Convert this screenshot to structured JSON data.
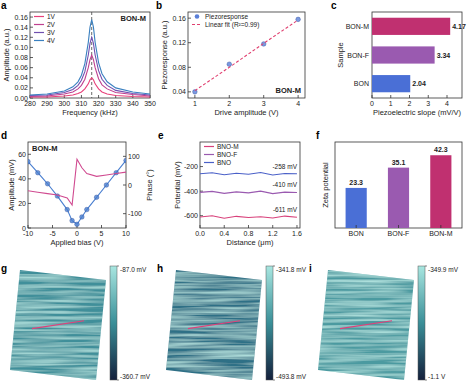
{
  "chart_data": [
    {
      "panel": "a",
      "type": "line",
      "sample_label": "BON-M",
      "x_label": "Frequency (kHz)",
      "y_label": "Amplitude (a.u.)",
      "x": [
        280,
        290,
        300,
        305,
        308,
        310,
        312,
        314,
        315,
        316,
        317,
        318,
        320,
        322,
        325,
        330,
        340,
        350
      ],
      "series": [
        {
          "name": "1V",
          "color": "#e8407a",
          "line_style": "solid",
          "values": [
            0.002,
            0.002,
            0.004,
            0.006,
            0.009,
            0.012,
            0.018,
            0.028,
            0.036,
            0.04,
            0.036,
            0.028,
            0.018,
            0.012,
            0.008,
            0.005,
            0.003,
            0.002
          ]
        },
        {
          "name": "2V",
          "color": "#c04090",
          "line_style": "solid",
          "values": [
            0.003,
            0.004,
            0.008,
            0.012,
            0.018,
            0.025,
            0.037,
            0.06,
            0.076,
            0.085,
            0.076,
            0.06,
            0.038,
            0.026,
            0.018,
            0.011,
            0.007,
            0.004
          ]
        },
        {
          "name": "3V",
          "color": "#7050b0",
          "line_style": "solid",
          "values": [
            0.005,
            0.006,
            0.011,
            0.017,
            0.025,
            0.035,
            0.052,
            0.085,
            0.108,
            0.12,
            0.108,
            0.085,
            0.054,
            0.037,
            0.025,
            0.015,
            0.009,
            0.006
          ]
        },
        {
          "name": "4V",
          "color": "#3a80c0",
          "line_style": "solid",
          "values": [
            0.006,
            0.008,
            0.014,
            0.022,
            0.032,
            0.045,
            0.068,
            0.11,
            0.14,
            0.155,
            0.14,
            0.11,
            0.07,
            0.048,
            0.032,
            0.02,
            0.012,
            0.008
          ]
        }
      ],
      "reference_x": 316,
      "xlim": [
        280,
        350
      ],
      "xticks": [
        280,
        290,
        300,
        310,
        320,
        330,
        340,
        350
      ],
      "ylim": [
        0,
        0.17
      ],
      "yticks": [
        {
          "value": 0,
          "label": "0.00"
        },
        0.02,
        0.04,
        0.06,
        0.08,
        {
          "value": 0.1,
          "label": "0.10"
        },
        0.12,
        0.14,
        0.16
      ],
      "legend": "upper left"
    },
    {
      "panel": "b",
      "type": "scatter",
      "sample_label": "BON-M",
      "x_label": "Drive amplitude (V)",
      "y_label": "Piezoresponse (a.u.)",
      "x": [
        1,
        2,
        3,
        4
      ],
      "series": [
        {
          "name": "Piezoresponse",
          "color": "#5a7fd8",
          "marker": "circle",
          "line_style": "none",
          "values": [
            0.04,
            0.085,
            0.118,
            0.158
          ]
        },
        {
          "name": "Linear fit (R²=0.99)",
          "color": "#e04070",
          "line_style": "dashed",
          "values": [
            0.042,
            0.08,
            0.119,
            0.157
          ]
        }
      ],
      "xlim": [
        0.8,
        4.2
      ],
      "xticks": [
        1,
        2,
        3,
        4
      ],
      "ylim": [
        0.03,
        0.17
      ],
      "yticks": [
        0.04,
        0.08,
        0.12,
        0.16
      ],
      "legend": "upper left"
    },
    {
      "panel": "c",
      "type": "bar",
      "orientation": "horizontal",
      "x_label": "Piezoelectric slope (mV/V)",
      "y_label": "Sample",
      "categories": [
        "BON-M",
        "BON-F",
        "BON"
      ],
      "values": [
        4.17,
        3.34,
        2.04
      ],
      "colors": [
        "#c03070",
        "#9a5ab0",
        "#4a6fd6"
      ],
      "xlim": [
        0,
        4.8
      ],
      "xticks": [
        0,
        1,
        2,
        3,
        4
      ],
      "data_labels": true
    },
    {
      "panel": "d",
      "type": "line",
      "sample_label": "BON-M",
      "x_label": "Applied bias (V)",
      "y_label": "Amplitude (mV)",
      "y2_label": "Phase (°)",
      "x": [
        -10,
        -8,
        -6,
        -4,
        -2,
        -1,
        0,
        1,
        2,
        4,
        6,
        8,
        10
      ],
      "series": [
        {
          "color": "#4a7fd0",
          "marker": "circle",
          "line_style": "solid",
          "values": [
            54,
            45,
            36,
            26,
            15,
            6,
            3,
            9,
            15,
            25,
            35,
            45,
            55
          ]
        },
        {
          "color": "#d04a90",
          "line_style": "solid",
          "axis": "y2",
          "values": [
            -20,
            -25,
            -30,
            -35,
            -45,
            -70,
            90,
            60,
            40,
            30,
            35,
            40,
            45
          ]
        }
      ],
      "xlim": [
        -10,
        10
      ],
      "xticks": [
        -10,
        -5,
        0,
        5,
        10
      ],
      "ylim": [
        0,
        70
      ],
      "yticks": [
        0,
        20,
        40,
        60
      ],
      "y2lim": [
        -150,
        150
      ],
      "y2ticks": [
        -100,
        0,
        100
      ]
    },
    {
      "panel": "e",
      "type": "line",
      "x_label": "Distance (μm)",
      "y_label": "Potential (mV)",
      "x": [
        0,
        0.2,
        0.4,
        0.6,
        0.8,
        1.0,
        1.2,
        1.4,
        1.6
      ],
      "series": [
        {
          "name": "BNO-M",
          "color": "#d8407a",
          "line_style": "solid",
          "values": [
            -611,
            -600,
            -620,
            -605,
            -615,
            -608,
            -618,
            -603,
            -612
          ]
        },
        {
          "name": "BNO-F",
          "color": "#9a5ab0",
          "line_style": "solid",
          "values": [
            -410,
            -402,
            -418,
            -406,
            -414,
            -400,
            -420,
            -408,
            -411
          ]
        },
        {
          "name": "BNO",
          "color": "#4a60c8",
          "line_style": "solid",
          "values": [
            -258,
            -250,
            -266,
            -254,
            -262,
            -248,
            -268,
            -256,
            -259
          ]
        }
      ],
      "annotations": [
        "-611 mV",
        "-410 mV",
        "-258 mV"
      ],
      "xlim": [
        0,
        1.65
      ],
      "xticks": [
        {
          "value": 0,
          "label": "0.0"
        },
        0.4,
        0.8,
        1.2,
        1.6
      ],
      "ylim": [
        -700,
        0
      ],
      "yticks": [
        -600,
        -400,
        -200
      ],
      "legend": "upper left"
    },
    {
      "panel": "f",
      "type": "bar",
      "y_label": "Zeta potential",
      "categories": [
        "BON",
        "BON-F",
        "BON-M"
      ],
      "values": [
        23.3,
        35.1,
        42.3
      ],
      "colors": [
        "#4a6fd6",
        "#9a5ab0",
        "#c03070"
      ],
      "ylim": [
        0,
        50
      ],
      "tick_labels": "x",
      "data_labels": true
    },
    {
      "panel": "g",
      "type": "image",
      "colorbar_range": [
        -360.7,
        -87.0
      ],
      "colorbar_ticks": [
        {
          "value": -87.0,
          "label": "-87.0 mV"
        },
        {
          "value": -360.7,
          "label": "-360.7 mV"
        }
      ]
    },
    {
      "panel": "h",
      "type": "image",
      "colorbar_range": [
        -493.8,
        -341.8
      ],
      "colorbar_ticks": [
        {
          "value": -341.8,
          "label": "-341.8 mV"
        },
        {
          "value": -493.8,
          "label": "-493.8 mV"
        }
      ]
    },
    {
      "panel": "i",
      "type": "image",
      "colorbar_range": [
        -1100,
        -349.9
      ],
      "colorbar_ticks": [
        {
          "value": -349.9,
          "label": "-349.9 mV"
        },
        {
          "value": -1100,
          "label": "-1.1 V"
        }
      ]
    }
  ]
}
